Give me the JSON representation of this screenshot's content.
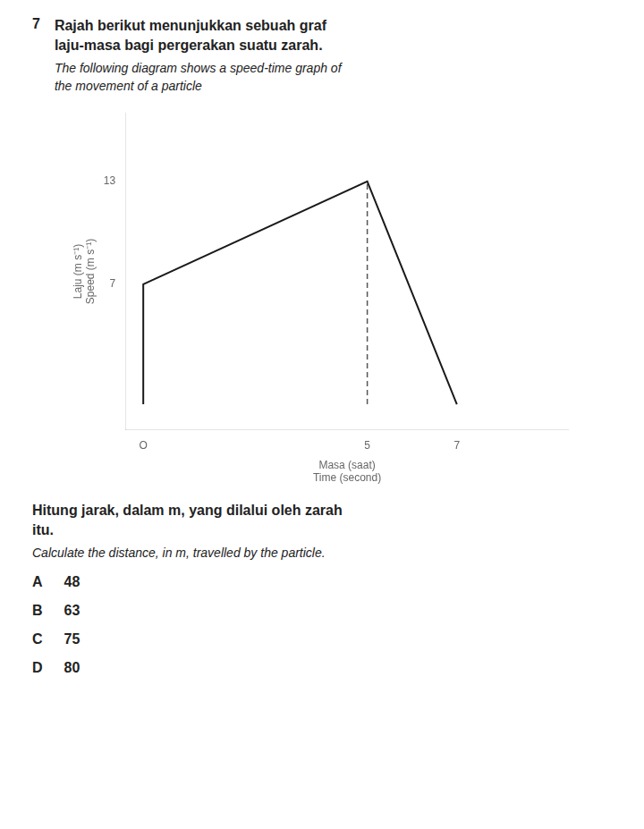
{
  "chart_data": {
    "type": "line",
    "question_number": "7",
    "title": [
      "Rajah berikut menunjukkan sebuah graf",
      "laju-masa bagi pergerakan suatu zarah."
    ],
    "subtitle": [
      "The following diagram shows a speed-time graph of",
      "the movement of a particle"
    ],
    "y_label": [
      "Laju (m s⁻¹)",
      "Speed (m s⁻¹)"
    ],
    "x_label": [
      "Masa (saat)",
      "Time (second)"
    ],
    "series": [
      {
        "x": [
          0,
          0,
          5,
          7
        ],
        "values": [
          0,
          7,
          13,
          0
        ],
        "color": "#1a1a1a",
        "line_style": "solid"
      },
      {
        "x": [
          5,
          5
        ],
        "values": [
          0,
          13
        ],
        "color": "#555555",
        "line_style": "dashed"
      }
    ],
    "xlim": [
      -0.4,
      9.5
    ],
    "ylim": [
      -1.5,
      17
    ],
    "xticks": [
      {
        "value": 0,
        "label": "O"
      },
      5,
      7
    ],
    "yticks": [
      7,
      13
    ],
    "grid": false,
    "question": [
      "Hitung jarak, dalam m, yang dilalui oleh zarah",
      "itu."
    ],
    "question_english": "Calculate the distance, in m, travelled by the particle.",
    "options": [
      {
        "letter": "A",
        "value": 48
      },
      {
        "letter": "B",
        "value": 63
      },
      {
        "letter": "C",
        "value": 75
      },
      {
        "letter": "D",
        "value": 80
      }
    ]
  }
}
